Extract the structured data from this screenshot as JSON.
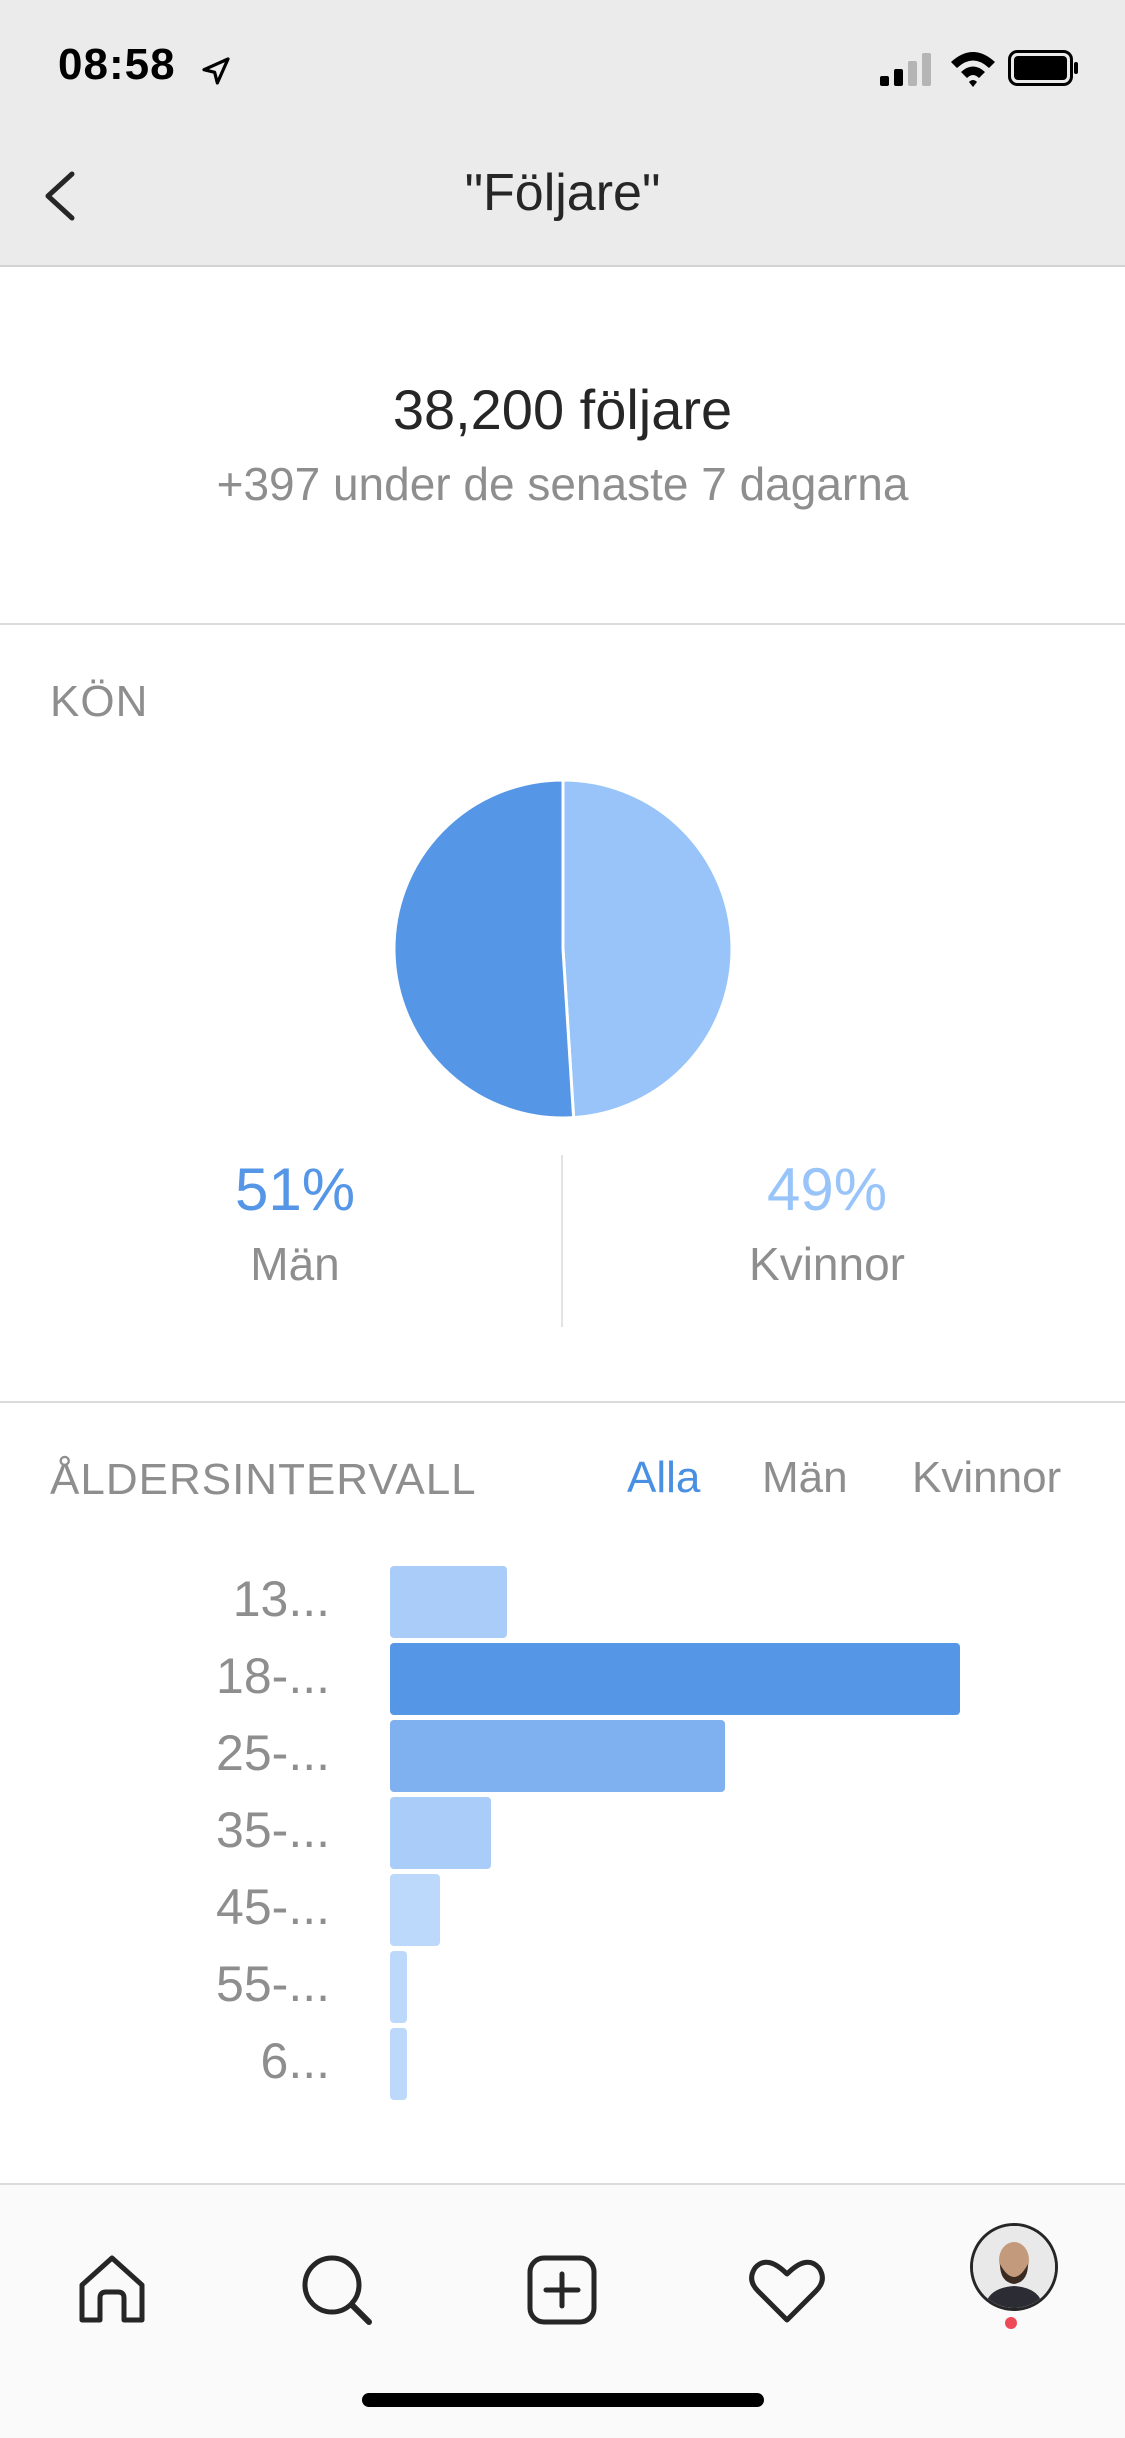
{
  "status_bar": {
    "time": "08:58",
    "icons": [
      "location-arrow-icon",
      "cellular-signal-icon",
      "wifi-icon",
      "battery-icon"
    ]
  },
  "header": {
    "title": "\"Följare\"",
    "back_icon": "chevron-left-icon"
  },
  "summary": {
    "followers": "38,200 följare",
    "change": "+397 under de senaste 7 dagarna"
  },
  "gender": {
    "title": "KÖN",
    "men_pct": "51%",
    "men_label": "Män",
    "women_pct": "49%",
    "women_label": "Kvinnor"
  },
  "age": {
    "title": "ÅLDERSINTERVALL",
    "tabs": [
      "Alla",
      "Män",
      "Kvinnor"
    ],
    "active_tab": "Alla",
    "labels": [
      "13...",
      "18-...",
      "25-...",
      "35-...",
      "45-...",
      "55-...",
      "6..."
    ]
  },
  "chart_data": [
    {
      "type": "pie",
      "categories": [
        "Män",
        "Kvinnor"
      ],
      "values": [
        51,
        49
      ],
      "colors": [
        "#5596e6",
        "#98c4fa"
      ]
    },
    {
      "type": "bar",
      "orientation": "horizontal",
      "categories": [
        "13...",
        "18-...",
        "25-...",
        "35-...",
        "45-...",
        "55-...",
        "6..."
      ],
      "values": [
        7,
        34,
        20,
        6,
        3,
        1,
        1
      ],
      "colors": [
        "#a9cdf8",
        "#5596e6",
        "#7fb0ef",
        "#a9cdf8",
        "#bcd8fa",
        "#bcd8fa",
        "#bcd8fa"
      ]
    }
  ],
  "tabbar": {
    "items": [
      "home-icon",
      "search-icon",
      "add-post-icon",
      "activity-heart-icon",
      "profile-avatar"
    ]
  },
  "colors": {
    "accent": "#4a90e2",
    "men": "#5596e6",
    "women": "#98c4fa",
    "muted_text": "#8e8e8e"
  }
}
